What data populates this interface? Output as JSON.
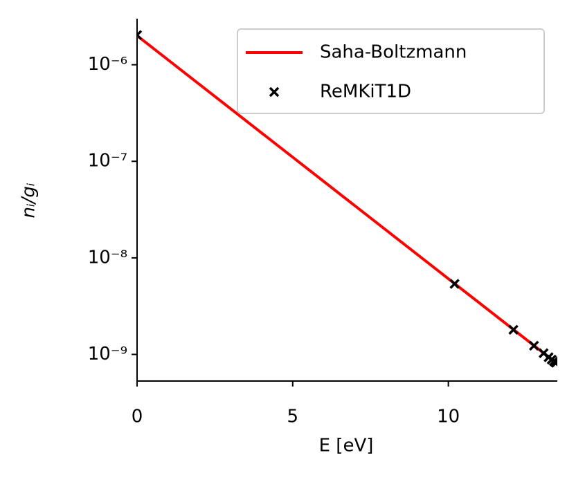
{
  "chart_data": {
    "type": "line-scatter",
    "xlabel": "E [eV]",
    "ylabel": "nᵢ/gᵢ",
    "xlim": [
      0,
      13.5
    ],
    "xticks": [
      0,
      5,
      10
    ],
    "ylim": [
      5.3e-10,
      3e-06
    ],
    "yscale": "log",
    "yticks": [
      {
        "value": 1e-09,
        "label": "10⁻⁹"
      },
      {
        "value": 1e-08,
        "label": "10⁻⁸"
      },
      {
        "value": 1e-07,
        "label": "10⁻⁷"
      },
      {
        "value": 1e-06,
        "label": "10⁻⁶"
      }
    ],
    "legend": "upper right",
    "series": [
      {
        "name": "Saha-Boltzmann",
        "type": "line",
        "color": "#ff0000",
        "x": [
          0,
          13.5
        ],
        "values": [
          2e-06,
          8e-10
        ]
      },
      {
        "name": "ReMKiT1D",
        "type": "scatter",
        "color": "#000000",
        "x": [
          0,
          10.2,
          12.09,
          12.75,
          13.06,
          13.22,
          13.32,
          13.39,
          13.43,
          13.46
        ],
        "values": [
          2.03e-06,
          5.38e-09,
          1.8e-09,
          1.23e-09,
          1.03e-09,
          9.35e-10,
          8.83e-10,
          8.48e-10,
          8.3e-10,
          8.2e-10
        ]
      }
    ]
  }
}
